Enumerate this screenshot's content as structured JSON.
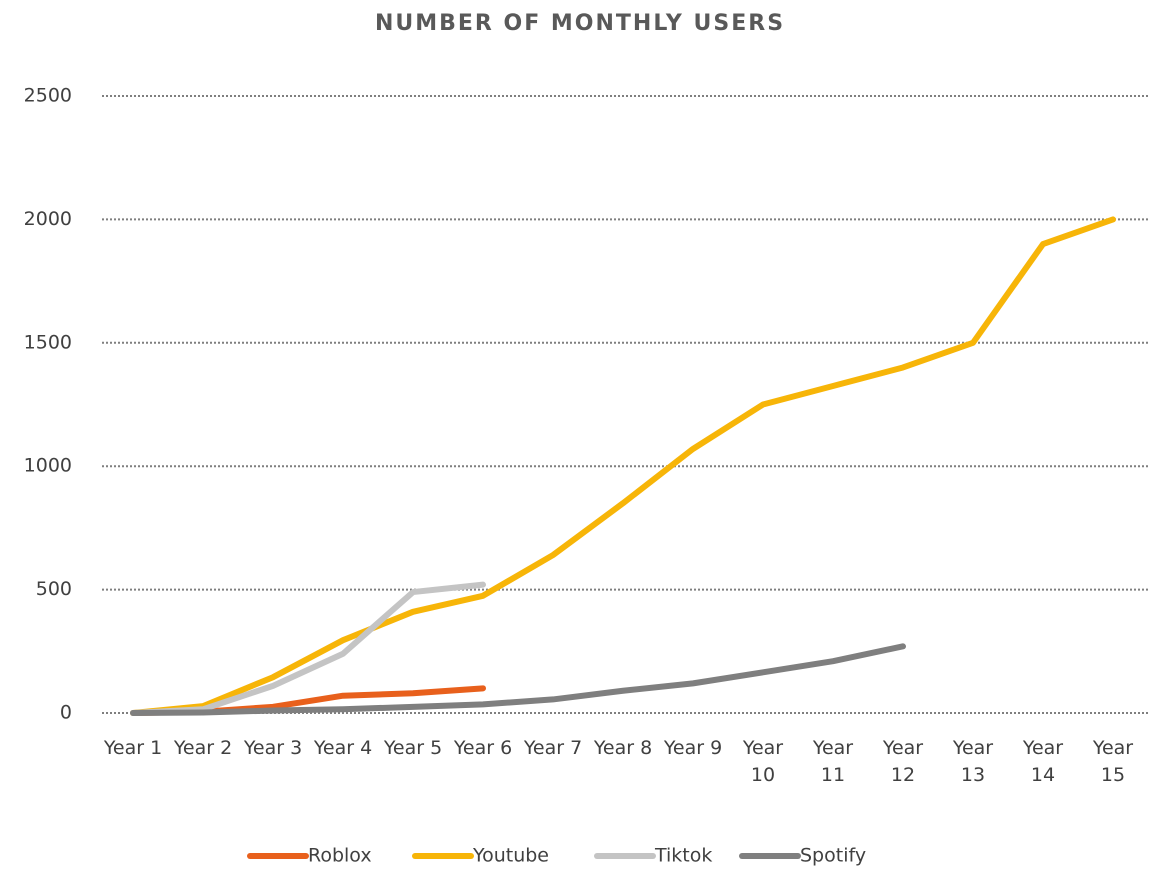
{
  "chart_data": {
    "type": "line",
    "title": "NUMBER OF MONTHLY USERS",
    "categories": [
      "Year 1",
      "Year 2",
      "Year 3",
      "Year 4",
      "Year 5",
      "Year 6",
      "Year 7",
      "Year 8",
      "Year 9",
      "Year 10",
      "Year 11",
      "Year 12",
      "Year 13",
      "Year 14",
      "Year 15"
    ],
    "series": [
      {
        "name": "Roblox",
        "color": "#e8601c",
        "values": [
          0,
          5,
          25,
          70,
          80,
          100,
          null,
          null,
          null,
          null,
          null,
          null,
          null,
          null,
          null
        ]
      },
      {
        "name": "Youtube",
        "color": "#f7b508",
        "values": [
          0,
          28,
          145,
          295,
          410,
          475,
          640,
          850,
          1070,
          1250,
          1325,
          1400,
          1500,
          1900,
          2000
        ]
      },
      {
        "name": "Tiktok",
        "color": "#c4c4c4",
        "values": [
          0,
          15,
          110,
          240,
          490,
          520,
          null,
          null,
          null,
          null,
          null,
          null,
          null,
          null,
          null
        ]
      },
      {
        "name": "Spotify",
        "color": "#7f7f7f",
        "values": [
          0,
          2,
          10,
          15,
          25,
          35,
          55,
          90,
          120,
          165,
          210,
          270,
          null,
          null,
          null
        ]
      }
    ],
    "ylim": [
      0,
      2500
    ],
    "yticks": [
      0,
      500,
      1000,
      1500,
      2000,
      2500
    ],
    "grid": true,
    "legend": "bottom"
  }
}
